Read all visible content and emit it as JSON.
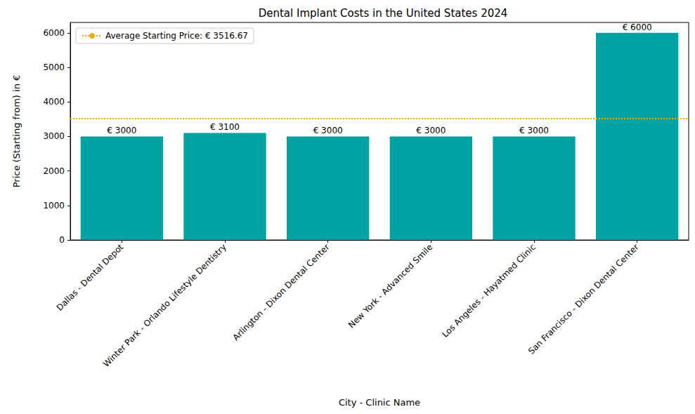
{
  "chart_data": {
    "type": "bar",
    "title": "Dental Implant Costs in the United States 2024",
    "x_label": "City - Clinic Name",
    "y_label": "Price (Starting from) in €",
    "categories": [
      "Dallas - Dental Depot",
      "Winter Park - Orlando Lifestyle Dentistry",
      "Arlington - Dixon Dental Center",
      "New York - Advanced Smile",
      "Los Angeles - Hayatmed Clinic",
      "San Francisco - Dixon Dental Center"
    ],
    "values": [
      3000,
      3100,
      3000,
      3000,
      3000,
      6000
    ],
    "value_labels": [
      "€ 3000",
      "€ 3100",
      "€ 3000",
      "€ 3000",
      "€ 3000",
      "€ 6000"
    ],
    "data_labels": true,
    "color": "#00a2a2",
    "ylim": [
      0,
      6300
    ],
    "yticks": [
      0,
      1000,
      2000,
      3000,
      4000,
      5000,
      6000
    ],
    "grid": false,
    "legend": "upper left",
    "reference_line": {
      "value": 3516.67,
      "label": "Average Starting Price: € 3516.67",
      "color": "#f0ab00",
      "line_style": "dotted"
    }
  }
}
